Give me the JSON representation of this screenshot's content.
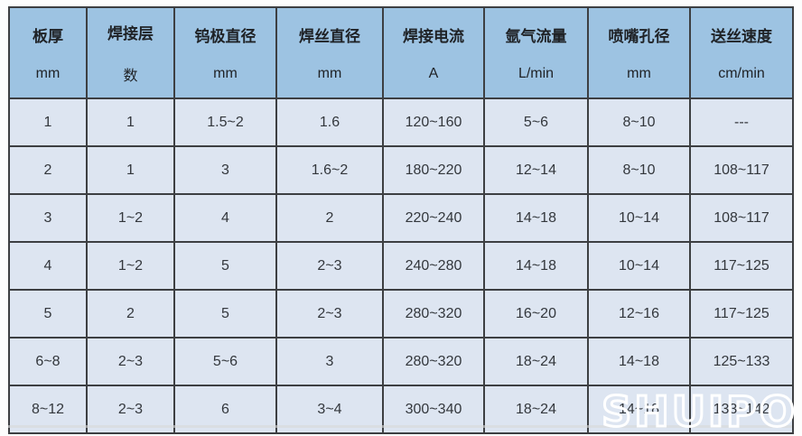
{
  "chart_data": {
    "type": "table",
    "title": "",
    "columns": [
      {
        "label": "板厚",
        "unit": "mm"
      },
      {
        "label": "焊接层",
        "unit": "数"
      },
      {
        "label": "钨极直径",
        "unit": "mm"
      },
      {
        "label": "焊丝直径",
        "unit": "mm"
      },
      {
        "label": "焊接电流",
        "unit": "A"
      },
      {
        "label": "氩气流量",
        "unit": "L/min"
      },
      {
        "label": "喷嘴孔径",
        "unit": "mm"
      },
      {
        "label": "送丝速度",
        "unit": "cm/min"
      }
    ],
    "rows": [
      [
        "1",
        "1",
        "1.5~2",
        "1.6",
        "120~160",
        "5~6",
        "8~10",
        "---"
      ],
      [
        "2",
        "1",
        "3",
        "1.6~2",
        "180~220",
        "12~14",
        "8~10",
        "108~117"
      ],
      [
        "3",
        "1~2",
        "4",
        "2",
        "220~240",
        "14~18",
        "10~14",
        "108~117"
      ],
      [
        "4",
        "1~2",
        "5",
        "2~3",
        "240~280",
        "14~18",
        "10~14",
        "117~125"
      ],
      [
        "5",
        "2",
        "5",
        "2~3",
        "280~320",
        "16~20",
        "12~16",
        "117~125"
      ],
      [
        "6~8",
        "2~3",
        "5~6",
        "3",
        "280~320",
        "18~24",
        "14~18",
        "125~133"
      ],
      [
        "8~12",
        "2~3",
        "6",
        "3~4",
        "300~340",
        "18~24",
        "14~18",
        "133~142"
      ]
    ]
  },
  "watermark": {
    "text": "SHUIPO"
  },
  "colors": {
    "header_bg": "#9dc3e2",
    "cell_bg": "#dde5f1",
    "border": "#3d3f42",
    "header_text": "#1f2226",
    "cell_text": "#33373c",
    "watermark_stroke": "#ffffff"
  }
}
